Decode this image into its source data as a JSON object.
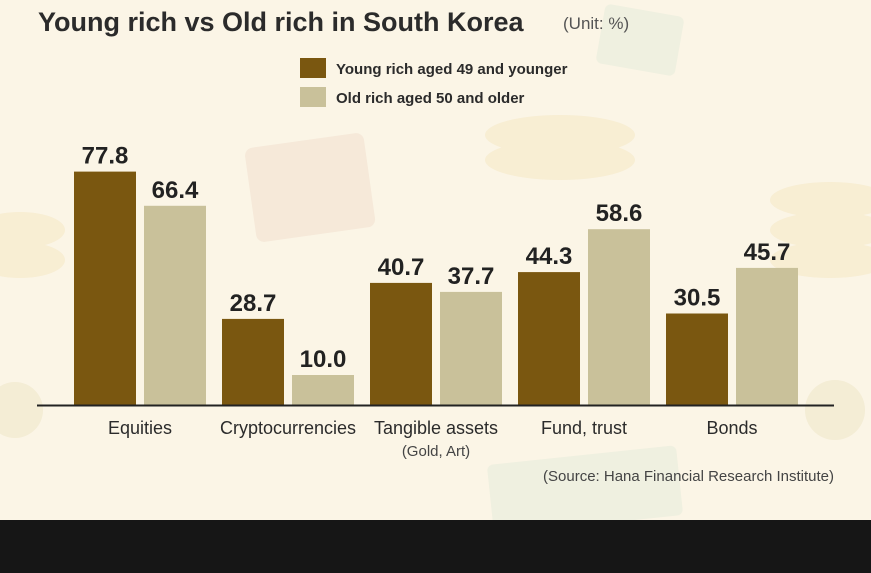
{
  "header": {
    "title": "Young rich vs Old rich in South Korea",
    "unit": "(Unit: %)"
  },
  "source": "(Source: Hana Financial Research Institute)",
  "colors": {
    "young": "#7a5710",
    "old": "#c9c19a",
    "background": "#fbf5e6",
    "axis": "#222222"
  },
  "chart_data": {
    "type": "bar",
    "categories": [
      "Equities",
      "Cryptocurrencies",
      "Tangible assets",
      "Fund, trust",
      "Bonds"
    ],
    "category_sublabels": [
      "",
      "",
      "(Gold, Art)",
      "",
      ""
    ],
    "series": [
      {
        "name": "Young rich aged 49 and younger",
        "values": [
          77.8,
          28.7,
          40.7,
          44.3,
          30.5
        ]
      },
      {
        "name": "Old rich aged 50 and older",
        "values": [
          66.4,
          10.0,
          37.7,
          58.6,
          45.7
        ]
      }
    ],
    "value_labels": [
      [
        "77.8",
        "28.7",
        "40.7",
        "44.3",
        "30.5"
      ],
      [
        "66.4",
        "10.0",
        "37.7",
        "58.6",
        "45.7"
      ]
    ],
    "ylim": [
      0,
      100
    ],
    "grid": false,
    "legend_position": "top-center"
  }
}
